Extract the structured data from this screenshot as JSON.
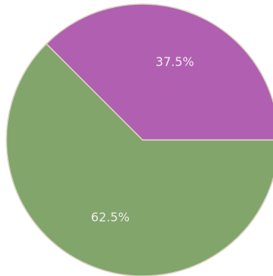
{
  "chart_data": {
    "type": "pie",
    "title": "",
    "labels": [
      "",
      ""
    ],
    "values": [
      37.5,
      62.5
    ],
    "value_labels": [
      "37.5%",
      "62.5%"
    ],
    "colors": [
      "#b15fb0",
      "#81a56a"
    ],
    "start_angle_deg": 0,
    "direction": "counterclockwise"
  }
}
